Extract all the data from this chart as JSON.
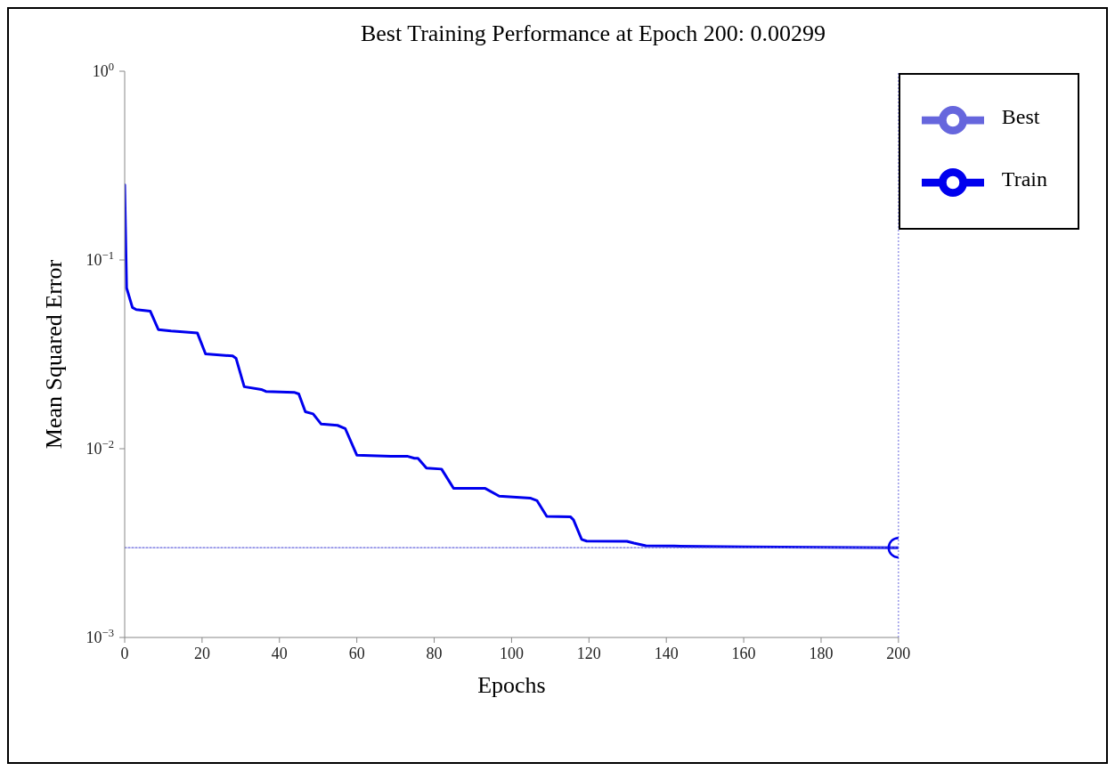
{
  "chart_data": {
    "type": "line",
    "title": "Best Training Performance at Epoch 200: 0.00299",
    "xlabel": "Epochs",
    "ylabel": "Mean Squared Error",
    "log": "y",
    "xlim": [
      0,
      200
    ],
    "xticks": [
      0,
      20,
      40,
      60,
      80,
      100,
      120,
      140,
      160,
      180,
      200
    ],
    "ylim": [
      0.001,
      1
    ],
    "yticks": [
      {
        "value": 0.001,
        "label": "10$^{−3}$"
      },
      {
        "value": 0.01,
        "label": "10$^{−2}$"
      },
      {
        "value": 0.1,
        "label": "10$^{−1}$"
      },
      {
        "value": 1,
        "label": "10$^{0}$"
      }
    ],
    "grid": false,
    "legend": "top right",
    "series": [
      {
        "name": "Train",
        "color": "#0000ee",
        "line_style": "solid",
        "marker": "none",
        "x": [
          0,
          0.5,
          2,
          3,
          6.6,
          8.7,
          12,
          18.8,
          20.9,
          27.9,
          28.8,
          30.9,
          35.3,
          36.5,
          43.8,
          45,
          46.7,
          48.7,
          50.8,
          55,
          57,
          60,
          68.8,
          73,
          74.9,
          75.8,
          78,
          81.9,
          85,
          93.2,
          96.8,
          104.8,
          106.6,
          109.1,
          115.2,
          116,
          118.1,
          119.4,
          129.8,
          131.6,
          134.7,
          142,
          160,
          180,
          200
        ],
        "values": [
          0.25,
          0.071,
          0.056,
          0.0546,
          0.0536,
          0.0428,
          0.0421,
          0.041,
          0.0318,
          0.031,
          0.0301,
          0.0213,
          0.0206,
          0.0201,
          0.0199,
          0.0195,
          0.0157,
          0.0153,
          0.0135,
          0.0133,
          0.0128,
          0.00925,
          0.00913,
          0.00913,
          0.0089,
          0.0089,
          0.00789,
          0.0078,
          0.00617,
          0.00616,
          0.00561,
          0.00548,
          0.0053,
          0.00438,
          0.00436,
          0.0042,
          0.00331,
          0.00324,
          0.00323,
          0.00316,
          0.00306,
          0.00305,
          0.00302,
          0.003,
          0.00299
        ]
      },
      {
        "name": "Best",
        "color": "#6666dd",
        "line_style": "dotted",
        "marker": "none",
        "x": [
          0,
          200
        ],
        "values": [
          0.00299,
          0.00299
        ]
      },
      {
        "type": "scatter",
        "color": "#0000ee",
        "marker": "circle",
        "x": [
          200
        ],
        "values": [
          0.00299
        ]
      }
    ],
    "ref_lines": [
      {
        "axis": "x",
        "value": 200,
        "color": "#6666dd",
        "line_style": "dotted"
      }
    ]
  }
}
